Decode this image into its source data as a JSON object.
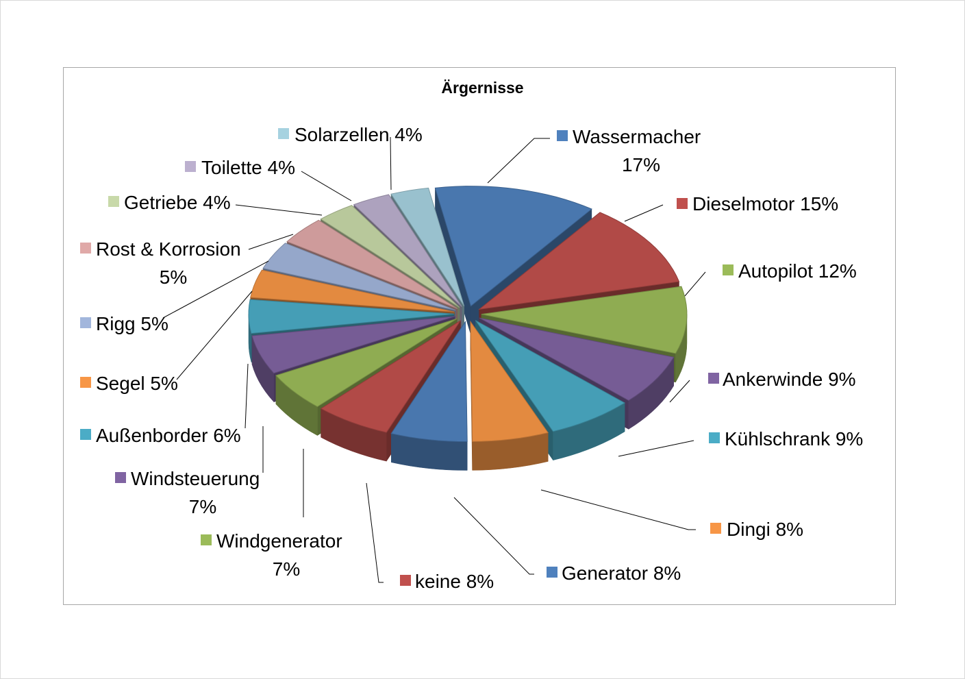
{
  "chart_data": {
    "type": "pie",
    "title": "Ärgernisse",
    "labels_show": "category and percent",
    "slices": [
      {
        "name": "Wassermacher",
        "value": 17,
        "label": "17%",
        "color": "#4F81BD"
      },
      {
        "name": "Dieselmotor",
        "value": 15,
        "label": "15%",
        "color": "#C0504D"
      },
      {
        "name": "Autopilot",
        "value": 12,
        "label": "12%",
        "color": "#9BBB59"
      },
      {
        "name": "Ankerwinde",
        "value": 9,
        "label": "9%",
        "color": "#8064A2"
      },
      {
        "name": "Kühlschrank",
        "value": 9,
        "label": "9%",
        "color": "#4BACC6"
      },
      {
        "name": "Dingi",
        "value": 8,
        "label": "8%",
        "color": "#F79646"
      },
      {
        "name": "Generator",
        "value": 8,
        "label": "8%",
        "color": "#4F81BD"
      },
      {
        "name": "keine",
        "value": 8,
        "label": "8%",
        "color": "#C0504D"
      },
      {
        "name": "Windgenerator",
        "value": 7,
        "label": "7%",
        "color": "#9BBB59"
      },
      {
        "name": "Windsteuerung",
        "value": 7,
        "label": "7%",
        "color": "#8064A2"
      },
      {
        "name": "Außenborder",
        "value": 6,
        "label": "6%",
        "color": "#4BACC6"
      },
      {
        "name": "Segel",
        "value": 5,
        "label": "5%",
        "color": "#F79646"
      },
      {
        "name": "Rigg",
        "value": 5,
        "label": "5%",
        "color": "#A2B6DC"
      },
      {
        "name": "Rost & Korrosion",
        "value": 5,
        "label": "5%",
        "color": "#E0A9A8"
      },
      {
        "name": "Getriebe",
        "value": 4,
        "label": "4%",
        "color": "#C8D9A9"
      },
      {
        "name": "Toilette",
        "value": 4,
        "label": "4%",
        "color": "#BCB0CF"
      },
      {
        "name": "Solarzellen",
        "value": 4,
        "label": "4%",
        "color": "#A6D2E0"
      }
    ]
  }
}
